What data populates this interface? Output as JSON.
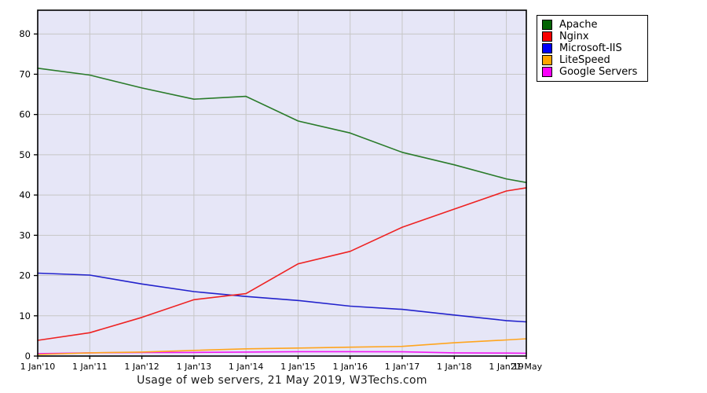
{
  "title": "Usage of web servers, 21 May 2019, W3Techs.com",
  "colors": {
    "page_bg": "#ffffff",
    "plot_bg": "#e6e6f7",
    "grid": "#c6c6c6",
    "border": "#000000",
    "tick_text": "#000000",
    "title_text": "#1a1a1a"
  },
  "chart_data": {
    "type": "line",
    "title": "Usage of web servers, 21 May 2019, W3Techs.com",
    "x_tick_labels": [
      "1 Jan'10",
      "1 Jan'11",
      "1 Jan'12",
      "1 Jan'13",
      "1 Jan'14",
      "1 Jan'15",
      "1 Jan'16",
      "1 Jan'17",
      "1 Jan'18",
      "1 Jan'19",
      "21 May"
    ],
    "x": [
      2010,
      2011,
      2012,
      2013,
      2014,
      2015,
      2016,
      2017,
      2018,
      2019,
      2019.3836
    ],
    "y_ticks": [
      0,
      10,
      20,
      30,
      40,
      50,
      60,
      70,
      80
    ],
    "xlim": [
      2010,
      2019.3836
    ],
    "ylim": [
      0,
      85.9
    ],
    "grid": true,
    "legend_position": "top-right-outside",
    "ylabel": "",
    "xlabel": "",
    "series": [
      {
        "name": "Apache",
        "color": "#2a7b2a",
        "swatch_color": "#046404",
        "values": [
          71.5,
          69.8,
          66.6,
          63.8,
          64.5,
          58.4,
          55.4,
          50.6,
          47.5,
          44.0,
          43.1
        ]
      },
      {
        "name": "Nginx",
        "color": "#ee2222",
        "swatch_color": "#f80000",
        "values": [
          3.9,
          5.8,
          9.6,
          14.0,
          15.5,
          22.9,
          26.0,
          32.0,
          36.5,
          41.0,
          41.8
        ]
      },
      {
        "name": "Microsoft-IIS",
        "color": "#2222cc",
        "swatch_color": "#0000f8",
        "values": [
          20.6,
          20.1,
          17.9,
          16.0,
          14.8,
          13.8,
          12.4,
          11.6,
          10.2,
          8.8,
          8.5
        ]
      },
      {
        "name": "LiteSpeed",
        "color": "#ffa51e",
        "swatch_color": "#ffa500",
        "values": [
          0.4,
          0.8,
          1.0,
          1.4,
          1.8,
          2.0,
          2.2,
          2.4,
          3.3,
          4.0,
          4.3
        ]
      },
      {
        "name": "Google Servers",
        "color": "#f219f2",
        "swatch_color": "#fa00fa",
        "values": [
          0.6,
          0.8,
          0.9,
          0.9,
          1.0,
          1.1,
          1.1,
          1.05,
          0.8,
          0.75,
          0.7
        ]
      }
    ]
  }
}
